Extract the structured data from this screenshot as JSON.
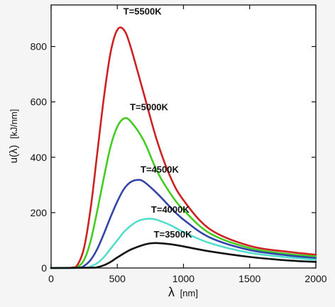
{
  "chart_data": {
    "type": "line",
    "title": "",
    "xlabel": {
      "symbol": "λ",
      "unit": "[nm]"
    },
    "ylabel": {
      "symbol": "u(λ)",
      "unit": "[kJ/nm]"
    },
    "xlim": [
      0,
      2000
    ],
    "ylim": [
      0,
      950
    ],
    "xticks": [
      0,
      500,
      1000,
      1500,
      2000
    ],
    "yticks": [
      0,
      200,
      400,
      600,
      800
    ],
    "grid": false,
    "legend": "none",
    "series": [
      {
        "name": "T=5500K",
        "color": "#cc2222",
        "x": [
          0,
          150,
          200,
          250,
          300,
          350,
          400,
          450,
          500,
          550,
          600,
          700,
          800,
          900,
          1000,
          1200,
          1500,
          1800,
          2000
        ],
        "y": [
          0,
          1,
          12,
          75,
          220,
          420,
          620,
          780,
          860,
          860,
          800,
          630,
          460,
          330,
          245,
          140,
          80,
          58,
          48
        ]
      },
      {
        "name": "T=5000K",
        "color": "#44cc22",
        "x": [
          0,
          150,
          200,
          250,
          300,
          350,
          400,
          450,
          500,
          550,
          600,
          700,
          800,
          900,
          1000,
          1200,
          1500,
          1800,
          2000
        ],
        "y": [
          0,
          0,
          4,
          30,
          100,
          210,
          330,
          440,
          510,
          540,
          530,
          460,
          350,
          270,
          210,
          125,
          72,
          50,
          42
        ]
      },
      {
        "name": "T=4500K",
        "color": "#3344aa",
        "x": [
          0,
          200,
          250,
          300,
          350,
          400,
          450,
          500,
          550,
          600,
          650,
          700,
          800,
          900,
          1000,
          1200,
          1500,
          1800,
          2000
        ],
        "y": [
          0,
          1,
          8,
          30,
          70,
          125,
          185,
          240,
          285,
          310,
          318,
          312,
          270,
          220,
          175,
          110,
          65,
          45,
          36
        ]
      },
      {
        "name": "T=4000K",
        "color": "#55ddcc",
        "x": [
          0,
          250,
          300,
          350,
          400,
          450,
          500,
          550,
          600,
          650,
          700,
          750,
          800,
          900,
          1000,
          1200,
          1500,
          1800,
          2000
        ],
        "y": [
          0,
          1,
          6,
          18,
          40,
          70,
          100,
          130,
          152,
          168,
          176,
          178,
          174,
          155,
          130,
          90,
          55,
          38,
          30
        ]
      },
      {
        "name": "T=3500K",
        "color": "#111111",
        "x": [
          0,
          300,
          350,
          400,
          450,
          500,
          600,
          700,
          750,
          800,
          900,
          1000,
          1200,
          1500,
          1800,
          2000
        ],
        "y": [
          0,
          1,
          3,
          10,
          22,
          38,
          66,
          84,
          89,
          90,
          86,
          78,
          60,
          40,
          27,
          22
        ]
      }
    ],
    "annotations": [
      {
        "text": "T=5500K",
        "series": 0,
        "at_x": 690,
        "at_y": 915
      },
      {
        "text": "T=5000K",
        "series": 1,
        "at_x": 740,
        "at_y": 570
      },
      {
        "text": "T=4500K",
        "series": 2,
        "at_x": 820,
        "at_y": 345
      },
      {
        "text": "T=4000K",
        "series": 3,
        "at_x": 900,
        "at_y": 200
      },
      {
        "text": "T=3500K",
        "series": 4,
        "at_x": 920,
        "at_y": 110
      }
    ]
  }
}
